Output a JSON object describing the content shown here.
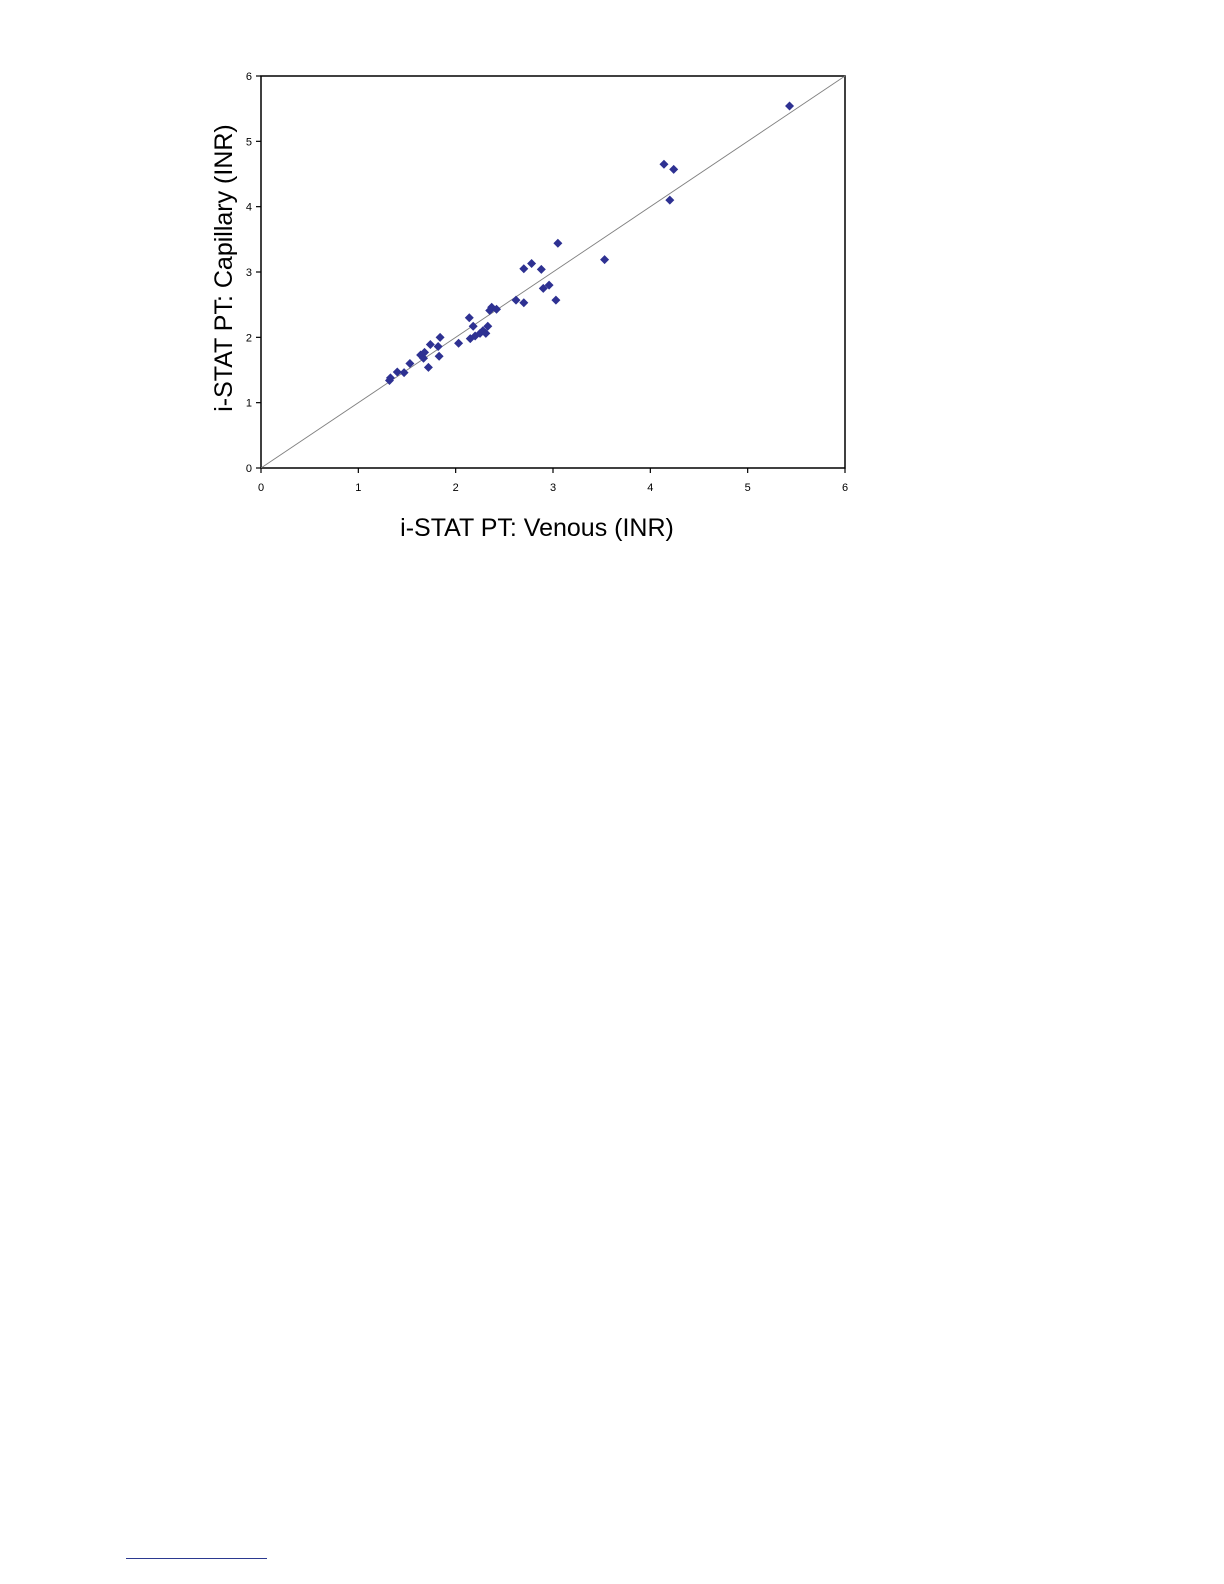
{
  "chart_data": {
    "type": "scatter",
    "title": "",
    "xlabel": "i-STAT PT: Venous (INR)",
    "ylabel": "i-STAT PT: Capillary (INR)",
    "xlim": [
      0,
      6
    ],
    "ylim": [
      0,
      6
    ],
    "x_ticks": [
      "0",
      "1",
      "2",
      "3",
      "4",
      "5",
      "6"
    ],
    "y_ticks": [
      "0",
      "1",
      "2",
      "3",
      "4",
      "5",
      "6"
    ],
    "grid": false,
    "legend": "none",
    "reference_line": {
      "type": "identity",
      "from": [
        0,
        0
      ],
      "to": [
        6,
        6
      ],
      "color": "#808080"
    },
    "marker": {
      "shape": "diamond",
      "color": "#2e3192"
    },
    "series": [
      {
        "points": [
          [
            1.32,
            1.34
          ],
          [
            1.33,
            1.38
          ],
          [
            1.4,
            1.47
          ],
          [
            1.47,
            1.46
          ],
          [
            1.53,
            1.6
          ],
          [
            1.64,
            1.73
          ],
          [
            1.67,
            1.68
          ],
          [
            1.68,
            1.77
          ],
          [
            1.72,
            1.54
          ],
          [
            1.74,
            1.89
          ],
          [
            1.82,
            1.86
          ],
          [
            1.83,
            1.71
          ],
          [
            1.84,
            2.0
          ],
          [
            2.03,
            1.91
          ],
          [
            2.14,
            2.3
          ],
          [
            2.15,
            1.98
          ],
          [
            2.18,
            2.17
          ],
          [
            2.2,
            2.02
          ],
          [
            2.25,
            2.06
          ],
          [
            2.28,
            2.1
          ],
          [
            2.31,
            2.06
          ],
          [
            2.33,
            2.17
          ],
          [
            2.35,
            2.41
          ],
          [
            2.37,
            2.46
          ],
          [
            2.42,
            2.43
          ],
          [
            2.62,
            2.57
          ],
          [
            2.7,
            2.53
          ],
          [
            2.7,
            3.05
          ],
          [
            2.78,
            3.13
          ],
          [
            2.88,
            3.04
          ],
          [
            2.9,
            2.75
          ],
          [
            2.96,
            2.8
          ],
          [
            3.03,
            2.57
          ],
          [
            3.05,
            3.44
          ],
          [
            3.53,
            3.19
          ],
          [
            4.14,
            4.65
          ],
          [
            4.2,
            4.1
          ],
          [
            4.24,
            4.57
          ],
          [
            5.43,
            5.54
          ]
        ]
      }
    ]
  }
}
